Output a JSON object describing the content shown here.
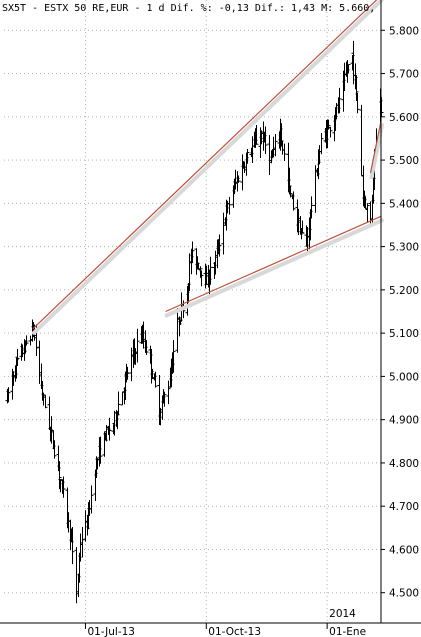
{
  "header": {
    "title": "SX5T - ESTX 50 RE,EUR -  1 d Dif. %: -0,13 Dif.: 1,43 M: 5.660,"
  },
  "colors": {
    "background": "#ffffff",
    "bars": "#000000",
    "trendline": "#c0503a",
    "grid": "#b4b4b4",
    "frame": "#000000"
  },
  "chart_data": {
    "type": "ohlc",
    "title": "SX5T - ESTX 50 RE,EUR -  1 d Dif. %: -0,13 Dif.: 1,43 M: 5.660,",
    "ylim": [
      4.43,
      5.87
    ],
    "xlim": [
      "2013-04-30",
      "2014-02-11"
    ],
    "y_ticks": [
      "4.500",
      "4.600",
      "4.700",
      "4.800",
      "4.900",
      "5.000",
      "5.100",
      "5.200",
      "5.300",
      "5.400",
      "5.500",
      "5.600",
      "5.700",
      "5.800"
    ],
    "y_tick_values": [
      4.5,
      4.6,
      4.7,
      4.8,
      4.9,
      5.0,
      5.1,
      5.2,
      5.3,
      5.4,
      5.5,
      5.6,
      5.7,
      5.8
    ],
    "x_ticks": [
      {
        "label": "01-Jul-13",
        "date": "2013-07-01"
      },
      {
        "label": "01-Oct-13",
        "date": "2013-10-01"
      },
      {
        "label": "01-Ene",
        "date": "2014-01-01"
      }
    ],
    "year_marker": {
      "label": "2014",
      "date": "2014-01-01"
    },
    "price_waypoints": [
      [
        "2013-05-02",
        4.95
      ],
      [
        "2013-05-09",
        5.03
      ],
      [
        "2013-05-16",
        5.07
      ],
      [
        "2013-05-22",
        5.11
      ],
      [
        "2013-05-29",
        4.96
      ],
      [
        "2013-06-05",
        4.86
      ],
      [
        "2013-06-12",
        4.76
      ],
      [
        "2013-06-19",
        4.64
      ],
      [
        "2013-06-24",
        4.5
      ],
      [
        "2013-06-27",
        4.62
      ],
      [
        "2013-07-02",
        4.66
      ],
      [
        "2013-07-08",
        4.79
      ],
      [
        "2013-07-15",
        4.86
      ],
      [
        "2013-07-22",
        4.89
      ],
      [
        "2013-07-29",
        4.97
      ],
      [
        "2013-08-05",
        5.04
      ],
      [
        "2013-08-12",
        5.1
      ],
      [
        "2013-08-19",
        5.04
      ],
      [
        "2013-08-26",
        4.92
      ],
      [
        "2013-09-02",
        4.98
      ],
      [
        "2013-09-09",
        5.12
      ],
      [
        "2013-09-16",
        5.2
      ],
      [
        "2013-09-19",
        5.28
      ],
      [
        "2013-09-25",
        5.26
      ],
      [
        "2013-10-01",
        5.22
      ],
      [
        "2013-10-08",
        5.27
      ],
      [
        "2013-10-15",
        5.37
      ],
      [
        "2013-10-22",
        5.44
      ],
      [
        "2013-10-29",
        5.49
      ],
      [
        "2013-11-05",
        5.53
      ],
      [
        "2013-11-12",
        5.56
      ],
      [
        "2013-11-19",
        5.5
      ],
      [
        "2013-11-26",
        5.57
      ],
      [
        "2013-12-03",
        5.43
      ],
      [
        "2013-12-10",
        5.35
      ],
      [
        "2013-12-16",
        5.3
      ],
      [
        "2013-12-20",
        5.4
      ],
      [
        "2013-12-27",
        5.54
      ],
      [
        "2014-01-03",
        5.58
      ],
      [
        "2014-01-10",
        5.63
      ],
      [
        "2014-01-16",
        5.71
      ],
      [
        "2014-01-20",
        5.74
      ],
      [
        "2014-01-24",
        5.62
      ],
      [
        "2014-01-28",
        5.42
      ],
      [
        "2014-02-03",
        5.36
      ],
      [
        "2014-02-06",
        5.52
      ],
      [
        "2014-02-09",
        5.65
      ],
      [
        "2014-02-11",
        5.62
      ]
    ],
    "trendlines": [
      {
        "from": [
          "2013-05-22",
          5.11
        ],
        "to": [
          "2014-02-11",
          5.88
        ]
      },
      {
        "from": [
          "2013-08-31",
          5.15
        ],
        "to": [
          "2014-02-11",
          5.37
        ]
      },
      {
        "from": [
          "2014-02-03",
          5.47
        ],
        "to": [
          "2014-02-11",
          5.59
        ]
      }
    ],
    "grid": true,
    "legend": "none"
  }
}
